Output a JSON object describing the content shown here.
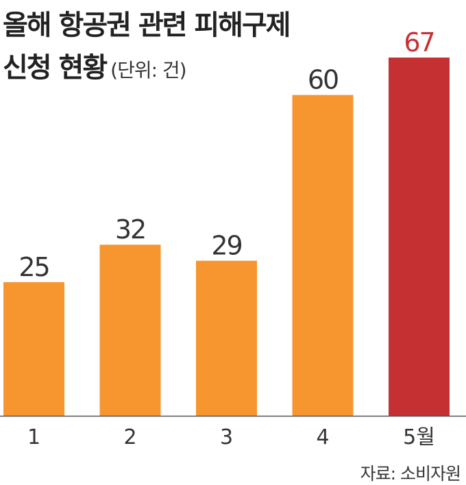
{
  "title": {
    "line1": "올해 항공권 관련 피해구제",
    "line2": "신청 현황",
    "unit": "(단위: 건)"
  },
  "source": "자료: 소비자원",
  "colors": {
    "normal_bar": "#F7962F",
    "highlight_bar": "#C53033",
    "highlight_label": "#C53033",
    "text": "#333333",
    "baseline": "#555555"
  },
  "chart_data": {
    "type": "bar",
    "categories": [
      "1",
      "2",
      "3",
      "4",
      "5월"
    ],
    "values": [
      25,
      32,
      29,
      60,
      67
    ],
    "highlight_index": 4,
    "title": "올해 항공권 관련 피해구제 신청 현황",
    "unit": "(단위: 건)",
    "xlabel": "",
    "ylabel": "",
    "ylim": [
      0,
      67
    ],
    "grid": false,
    "legend": "none"
  }
}
